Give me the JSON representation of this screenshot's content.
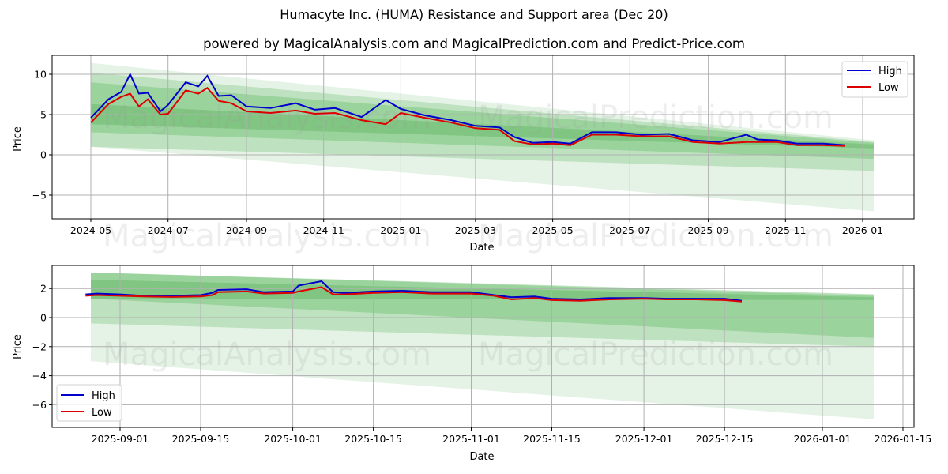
{
  "header": {
    "title": "Humacyte Inc. (HUMA) Resistance and Support area (Dec 20)",
    "subtitle": "powered by MagicalAnalysis.com and MagicalPrediction.com and Predict-Price.com"
  },
  "watermarks": [
    "MagicalAnalysis.com",
    "MagicalPrediction.com"
  ],
  "colors": {
    "high": "#0000cc",
    "low": "#dd0000",
    "band": "#4caf50",
    "grid": "#b0b0b0"
  },
  "chart_data": [
    {
      "type": "line",
      "title": "Long-term (2024-05 to 2026-01)",
      "xlabel": "Date",
      "ylabel": "Price",
      "ylim": [
        -8.0,
        12.5
      ],
      "yticks": [
        "10",
        "5",
        "0",
        "−5"
      ],
      "xticks": [
        "2024-05",
        "2024-07",
        "2024-09",
        "2024-11",
        "2025-01",
        "2025-03",
        "2025-05",
        "2025-07",
        "2025-09",
        "2025-11",
        "2026-01"
      ],
      "grid": true,
      "legend": {
        "position": "upper right",
        "entries": [
          "High",
          "Low"
        ]
      },
      "x": [
        "2024-05-01",
        "2024-05-15",
        "2024-05-25",
        "2024-06-01",
        "2024-06-08",
        "2024-06-15",
        "2024-06-25",
        "2024-07-01",
        "2024-07-15",
        "2024-07-25",
        "2024-08-01",
        "2024-08-10",
        "2024-08-20",
        "2024-09-01",
        "2024-09-20",
        "2024-10-10",
        "2024-10-25",
        "2024-11-10",
        "2024-12-01",
        "2024-12-20",
        "2025-01-01",
        "2025-01-20",
        "2025-02-10",
        "2025-03-01",
        "2025-03-20",
        "2025-04-01",
        "2025-04-15",
        "2025-05-01",
        "2025-05-15",
        "2025-06-01",
        "2025-06-20",
        "2025-07-10",
        "2025-08-01",
        "2025-08-20",
        "2025-09-10",
        "2025-10-01",
        "2025-10-10",
        "2025-10-25",
        "2025-11-10",
        "2025-12-01",
        "2025-12-18"
      ],
      "series": [
        {
          "name": "High",
          "values": [
            4.6,
            6.9,
            7.8,
            10.0,
            7.6,
            7.7,
            5.4,
            6.2,
            9.0,
            8.5,
            9.8,
            7.3,
            7.4,
            6.0,
            5.8,
            6.4,
            5.6,
            5.8,
            4.7,
            6.8,
            5.7,
            4.9,
            4.3,
            3.6,
            3.4,
            2.2,
            1.5,
            1.6,
            1.4,
            2.8,
            2.8,
            2.5,
            2.6,
            1.8,
            1.6,
            2.5,
            1.9,
            1.8,
            1.4,
            1.4,
            1.2
          ]
        },
        {
          "name": "Low",
          "values": [
            4.0,
            6.3,
            7.2,
            7.6,
            6.0,
            6.9,
            5.0,
            5.1,
            8.0,
            7.6,
            8.3,
            6.7,
            6.4,
            5.4,
            5.2,
            5.5,
            5.1,
            5.2,
            4.3,
            3.8,
            5.2,
            4.6,
            4.0,
            3.3,
            3.1,
            1.7,
            1.3,
            1.4,
            1.2,
            2.5,
            2.5,
            2.3,
            2.3,
            1.6,
            1.4,
            1.6,
            1.6,
            1.6,
            1.2,
            1.2,
            1.1
          ]
        }
      ],
      "bands": [
        {
          "label": "outer-light",
          "start": [
            1.0,
            11.4
          ],
          "end": [
            -7.0,
            1.8
          ]
        },
        {
          "label": "mid",
          "start": [
            1.0,
            10.2
          ],
          "end": [
            -2.0,
            1.6
          ]
        },
        {
          "label": "inner",
          "start": [
            2.8,
            9.0
          ],
          "end": [
            -0.5,
            1.5
          ]
        },
        {
          "label": "core",
          "start": [
            3.8,
            6.3
          ],
          "end": [
            0.8,
            1.3
          ]
        }
      ]
    },
    {
      "type": "line",
      "title": "Short-term (2025-08-25 to 2026-01-10)",
      "xlabel": "Date",
      "ylabel": "Price",
      "ylim": [
        -7.5,
        3.7
      ],
      "yticks": [
        "2",
        "0",
        "−2",
        "−4",
        "−6"
      ],
      "xticks": [
        "2025-09-01",
        "2025-09-15",
        "2025-10-01",
        "2025-10-15",
        "2025-11-01",
        "2025-11-15",
        "2025-12-01",
        "2025-12-15",
        "2026-01-01",
        "2026-01-15"
      ],
      "grid": true,
      "legend": {
        "position": "lower left",
        "entries": [
          "High",
          "Low"
        ]
      },
      "x": [
        "2025-08-26",
        "2025-08-28",
        "2025-09-01",
        "2025-09-05",
        "2025-09-10",
        "2025-09-15",
        "2025-09-17",
        "2025-09-18",
        "2025-09-23",
        "2025-09-26",
        "2025-10-01",
        "2025-10-02",
        "2025-10-06",
        "2025-10-08",
        "2025-10-10",
        "2025-10-15",
        "2025-10-20",
        "2025-10-25",
        "2025-11-01",
        "2025-11-05",
        "2025-11-08",
        "2025-11-12",
        "2025-11-15",
        "2025-11-20",
        "2025-11-25",
        "2025-12-01",
        "2025-12-05",
        "2025-12-10",
        "2025-12-15",
        "2025-12-18"
      ],
      "series": [
        {
          "name": "High",
          "values": [
            1.6,
            1.65,
            1.6,
            1.5,
            1.5,
            1.55,
            1.7,
            1.9,
            1.95,
            1.75,
            1.8,
            2.2,
            2.5,
            1.75,
            1.7,
            1.8,
            1.85,
            1.75,
            1.75,
            1.55,
            1.4,
            1.45,
            1.3,
            1.25,
            1.35,
            1.35,
            1.3,
            1.3,
            1.3,
            1.15
          ]
        },
        {
          "name": "Low",
          "values": [
            1.5,
            1.55,
            1.5,
            1.45,
            1.42,
            1.45,
            1.55,
            1.75,
            1.8,
            1.65,
            1.7,
            1.8,
            2.1,
            1.6,
            1.6,
            1.7,
            1.75,
            1.65,
            1.65,
            1.5,
            1.25,
            1.35,
            1.2,
            1.15,
            1.25,
            1.3,
            1.25,
            1.25,
            1.2,
            1.1
          ]
        }
      ],
      "bands": [
        {
          "label": "outer-light",
          "start": [
            -3.0,
            3.1
          ],
          "end": [
            -7.0,
            1.6
          ]
        },
        {
          "label": "mid",
          "start": [
            -0.4,
            3.1
          ],
          "end": [
            -2.0,
            1.6
          ]
        },
        {
          "label": "inner",
          "start": [
            1.3,
            3.1
          ],
          "end": [
            -1.4,
            1.5
          ]
        },
        {
          "label": "core",
          "start": [
            1.3,
            2.6
          ],
          "end": [
            1.2,
            1.4
          ]
        }
      ]
    }
  ]
}
